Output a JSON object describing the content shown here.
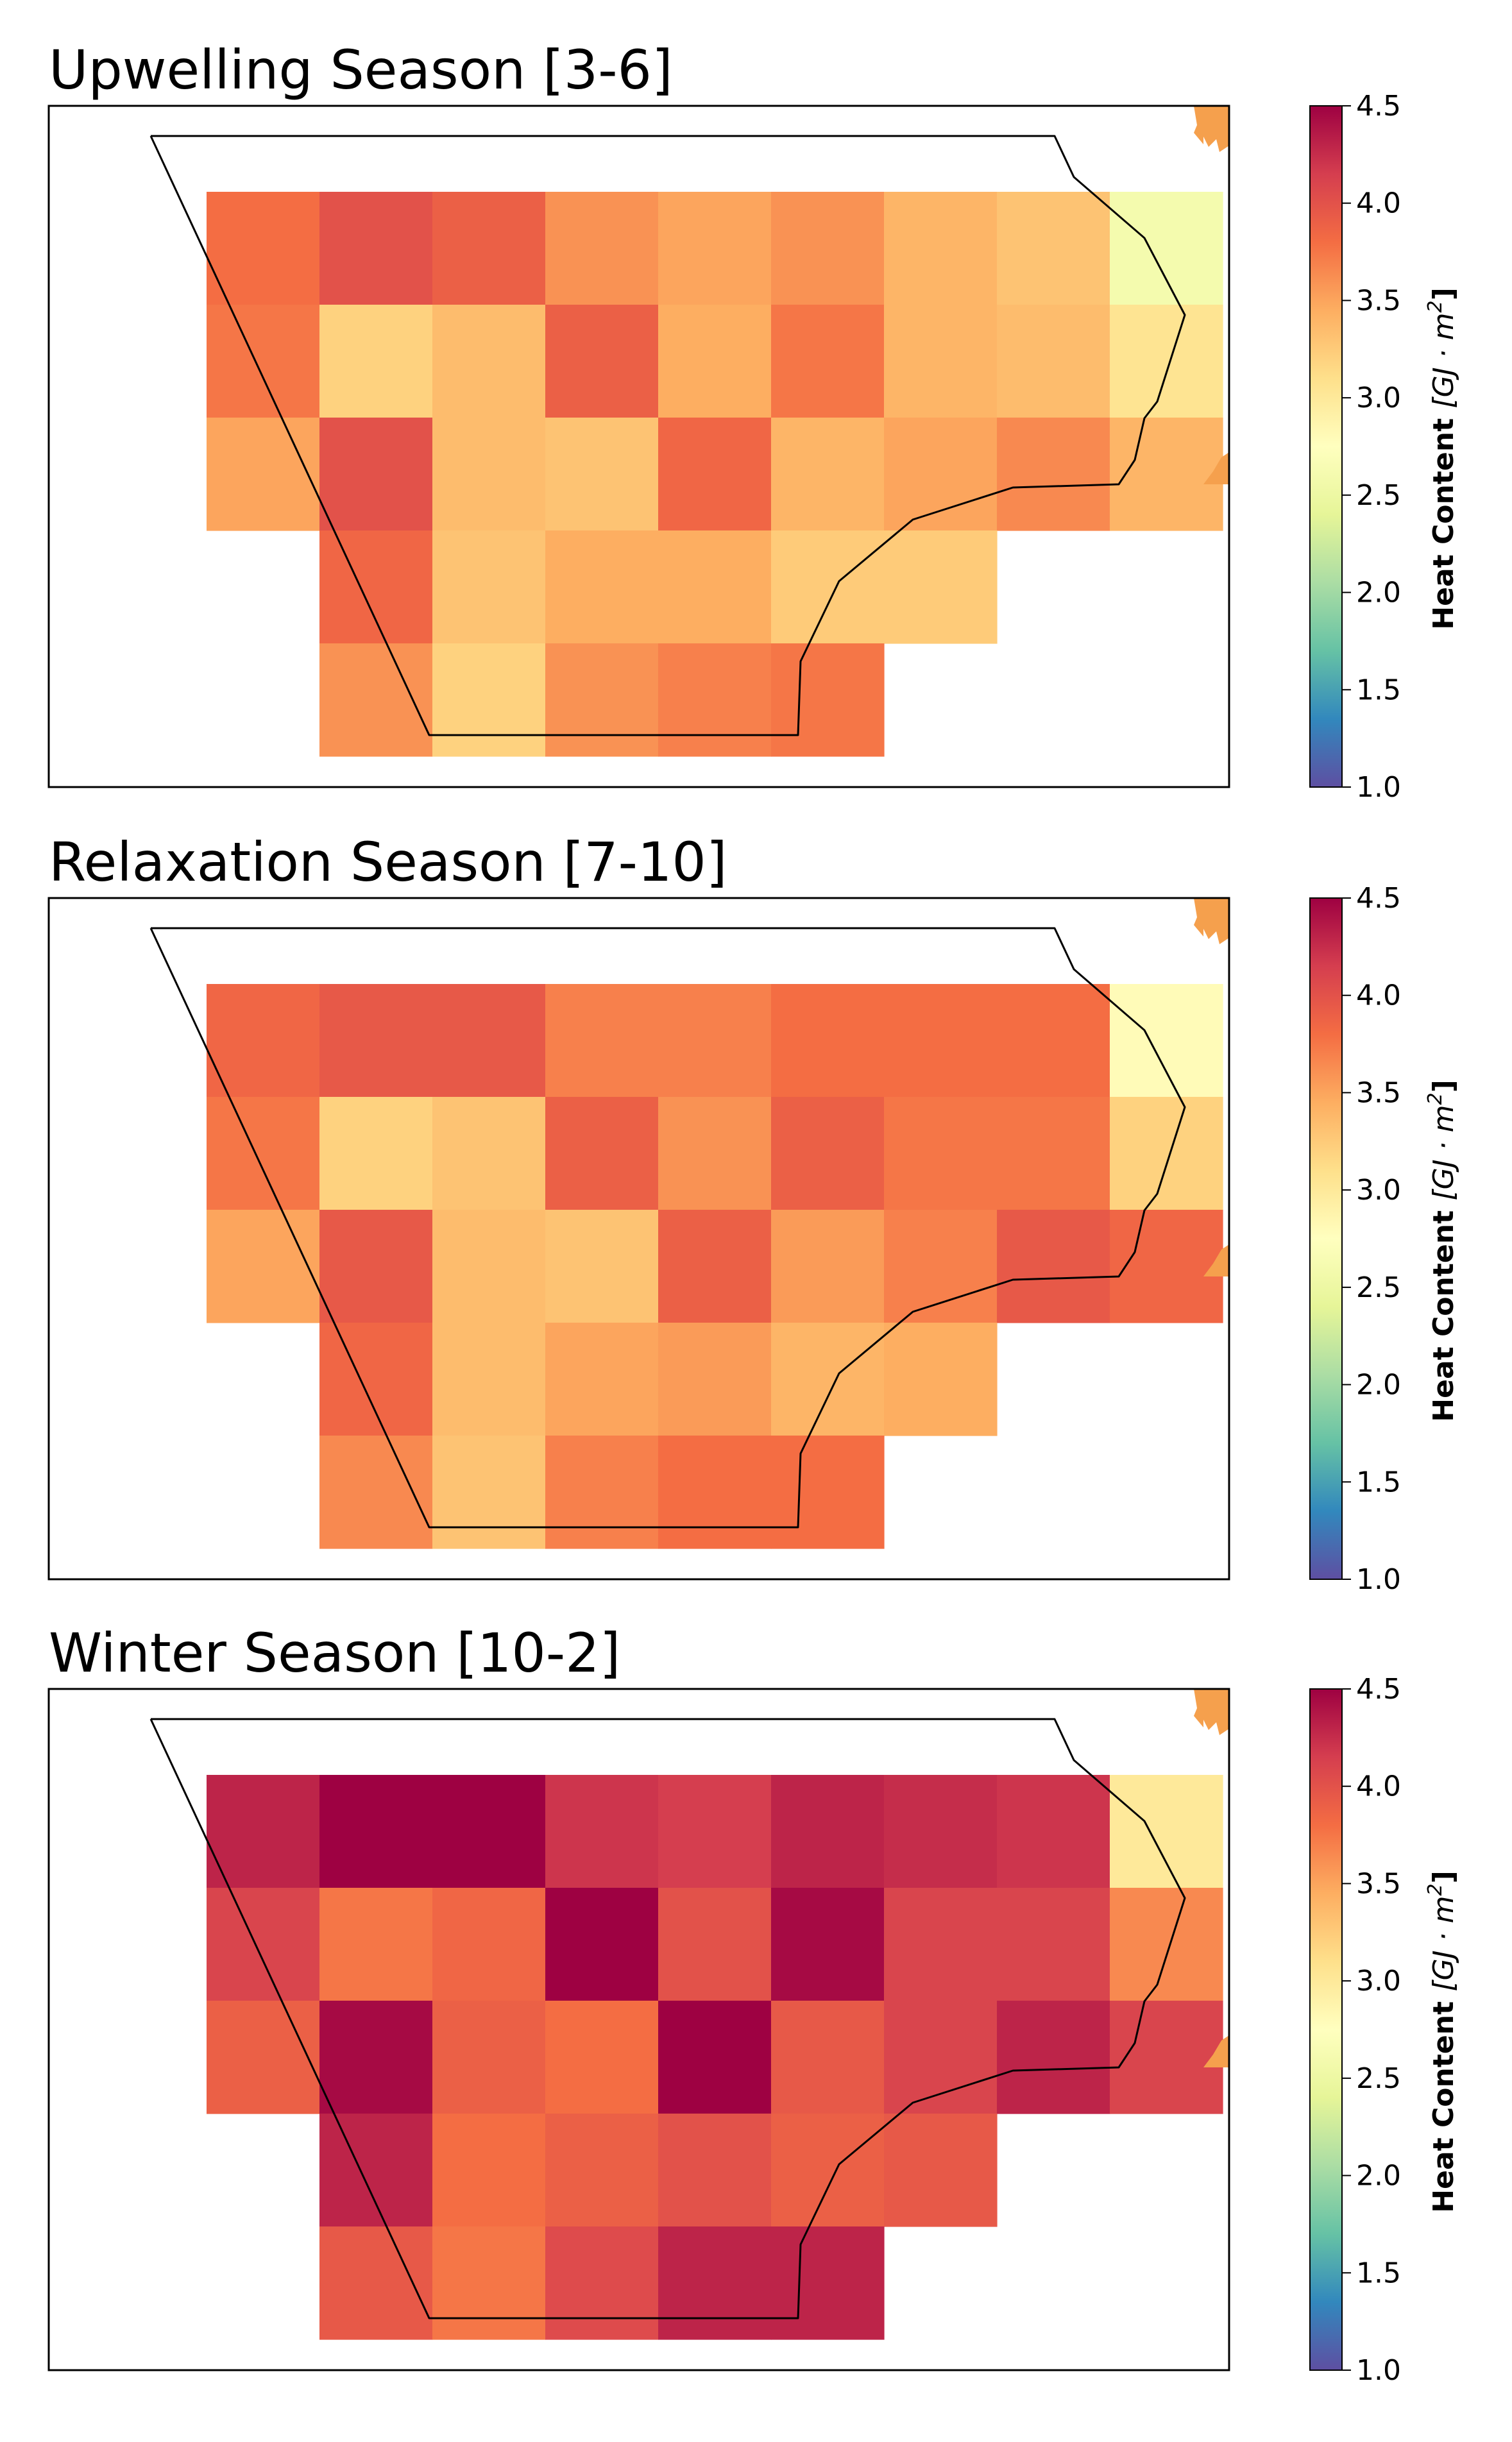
{
  "chart_data": [
    {
      "type": "heatmap",
      "title": "Upwelling Season [3-6]",
      "rows": [
        [
          3.8,
          4.0,
          3.9,
          3.6,
          3.5,
          3.6,
          3.4,
          3.3,
          2.6
        ],
        [
          3.75,
          3.2,
          3.35,
          3.9,
          3.45,
          3.75,
          3.4,
          3.35,
          3.05
        ],
        [
          3.5,
          4.0,
          3.35,
          3.3,
          3.85,
          3.4,
          3.5,
          3.65,
          3.4
        ],
        [
          null,
          3.85,
          3.3,
          3.45,
          3.45,
          3.25,
          3.25,
          null,
          null
        ],
        [
          null,
          3.6,
          3.2,
          3.6,
          3.7,
          3.75,
          null,
          null,
          null
        ]
      ],
      "colorbar": {
        "label": "Heat Content [GJ·m²]",
        "label_main": "Heat Content",
        "label_unit": "[GJ · m",
        "label_sup": "2",
        "label_end": "]",
        "vmin": 1.0,
        "vmax": 4.5,
        "ticks": [
          "1.0",
          "1.5",
          "2.0",
          "2.5",
          "3.0",
          "3.5",
          "4.0",
          "4.5"
        ],
        "colormap": "Spectral_r"
      }
    },
    {
      "type": "heatmap",
      "title": "Relaxation Season [7-10]",
      "rows": [
        [
          3.85,
          3.95,
          3.95,
          3.7,
          3.7,
          3.8,
          3.8,
          3.8,
          2.8
        ],
        [
          3.75,
          3.2,
          3.3,
          3.9,
          3.6,
          3.9,
          3.75,
          3.75,
          3.2
        ],
        [
          3.5,
          3.95,
          3.35,
          3.3,
          3.9,
          3.55,
          3.7,
          3.95,
          3.85
        ],
        [
          null,
          3.85,
          3.35,
          3.5,
          3.55,
          3.4,
          3.45,
          null,
          null
        ],
        [
          null,
          3.65,
          3.3,
          3.7,
          3.8,
          3.8,
          null,
          null,
          null
        ]
      ],
      "colorbar": {
        "label": "Heat Content [GJ·m²]",
        "label_main": "Heat Content",
        "label_unit": "[GJ · m",
        "label_sup": "2",
        "label_end": "]",
        "vmin": 1.0,
        "vmax": 4.5,
        "ticks": [
          "1.0",
          "1.5",
          "2.0",
          "2.5",
          "3.0",
          "3.5",
          "4.0",
          "4.5"
        ],
        "colormap": "Spectral_r"
      }
    },
    {
      "type": "heatmap",
      "title": "Winter Season [10-2]",
      "rows": [
        [
          4.3,
          4.5,
          4.5,
          4.2,
          4.15,
          4.3,
          4.25,
          4.2,
          3.0
        ],
        [
          4.1,
          3.75,
          3.85,
          4.5,
          4.0,
          4.45,
          4.1,
          4.1,
          3.65
        ],
        [
          3.9,
          4.45,
          3.9,
          3.8,
          4.5,
          3.95,
          4.1,
          4.3,
          4.1
        ],
        [
          null,
          4.3,
          3.8,
          3.9,
          4.0,
          3.9,
          3.95,
          null,
          null
        ],
        [
          null,
          3.95,
          3.75,
          4.05,
          4.3,
          4.3,
          null,
          null,
          null
        ]
      ],
      "colorbar": {
        "label": "Heat Content [GJ·m²]",
        "label_main": "Heat Content",
        "label_unit": "[GJ · m",
        "label_sup": "2",
        "label_end": "]",
        "vmin": 1.0,
        "vmax": 4.5,
        "ticks": [
          "1.0",
          "1.5",
          "2.0",
          "2.5",
          "3.0",
          "3.5",
          "4.0",
          "4.5"
        ],
        "colormap": "Spectral_r"
      }
    }
  ],
  "colors": {
    "land": "#f5a04d",
    "outline": "#000000",
    "axes_frame": "#000000"
  }
}
